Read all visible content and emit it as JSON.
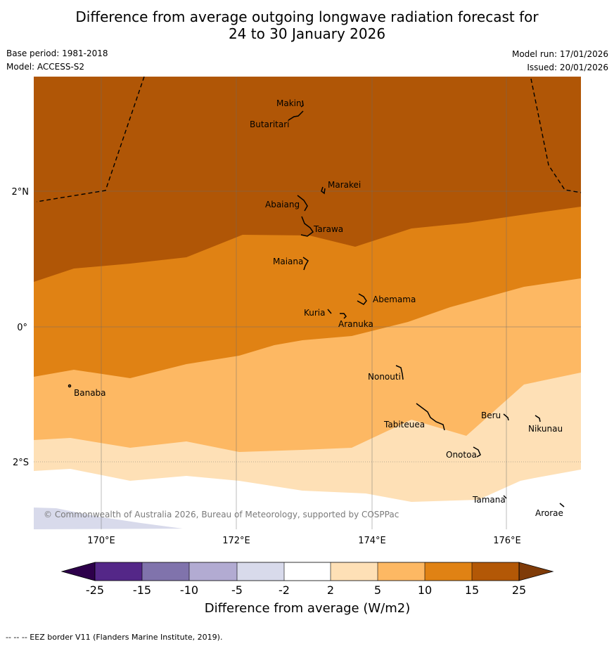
{
  "header": {
    "title_line1": "Difference from average outgoing longwave radiation forecast for",
    "title_line2": "24 to 30 January 2026",
    "base_period": "Base period: 1981-2018",
    "model": "Model: ACCESS-S2",
    "model_run": "Model run: 17/01/2026",
    "issued": "Issued: 20/01/2026"
  },
  "map": {
    "lon_labels": [
      "170°E",
      "172°E",
      "174°E",
      "176°E"
    ],
    "lat_labels": [
      "2°N",
      "0°",
      "2°S"
    ],
    "islands": [
      "Makin",
      "Butaritari",
      "Marakei",
      "Abaiang",
      "Tarawa",
      "Maiana",
      "Abemama",
      "Kuria",
      "Aranuka",
      "Nonouti",
      "Banaba",
      "Beru",
      "Nikunau",
      "Tabiteuea",
      "Onotoa",
      "Tamana",
      "Arorae"
    ],
    "copyright": "© Commonwealth of Australia 2026, Bureau of Meteorology, supported by COSPPac",
    "colors": {
      "band_ge15": "#b05606",
      "band_10_15": "#e08214",
      "band_5_10": "#fdb863",
      "band_2_5": "#fee0b6",
      "band_m2_2": "#ffffff",
      "band_m5_m2": "#d8daeb"
    }
  },
  "legend": {
    "ticks": [
      "-25",
      "-15",
      "-10",
      "-5",
      "-2",
      "2",
      "5",
      "10",
      "15",
      "25"
    ],
    "label": "Difference from average (W/m2)",
    "colors": [
      "#2d004b",
      "#542788",
      "#8073ac",
      "#b2abd2",
      "#d8daeb",
      "#ffffff",
      "#fee0b6",
      "#fdb863",
      "#e08214",
      "#b35806",
      "#7f3b08"
    ]
  },
  "footer": {
    "eez_note": "--  --  -- EEZ border V11 (Flanders Marine Institute, 2019)."
  }
}
